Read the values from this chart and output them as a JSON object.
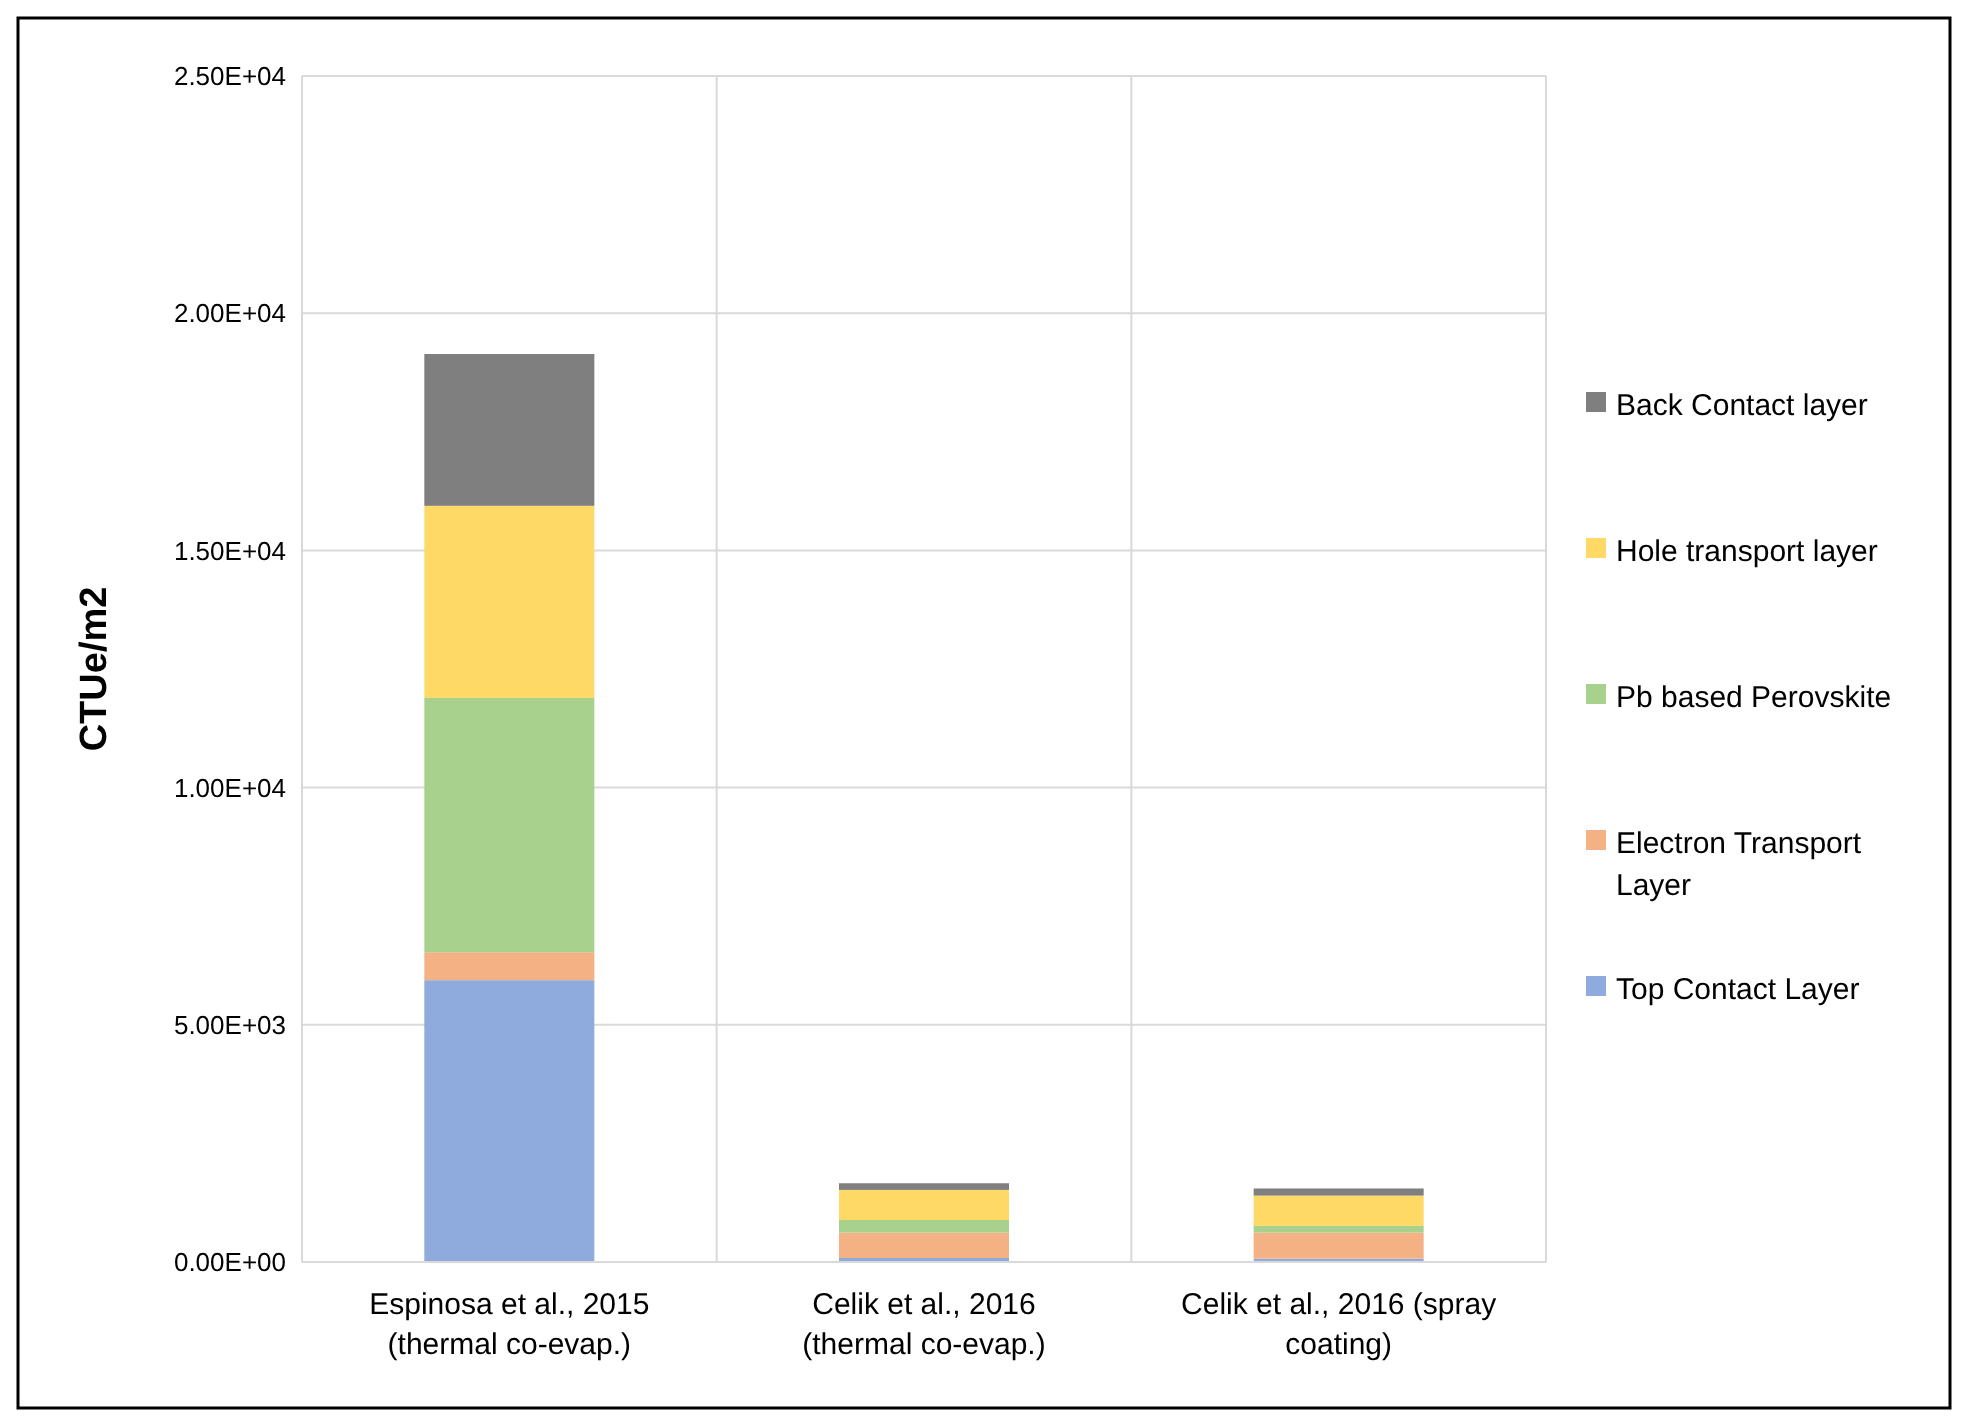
{
  "chart_data": {
    "type": "bar",
    "stacked": true,
    "ylabel": "CTUe/m2",
    "categories": [
      "Espinosa et al., 2015 (thermal co-evap.)",
      "Celik et al., 2016 (thermal co-evap.)",
      "Celik et al., 2016 (spray coating)"
    ],
    "series": [
      {
        "name": "Top Contact Layer",
        "color": "#8faadc",
        "values": [
          5940,
          85,
          70
        ]
      },
      {
        "name": "Electron Transport Layer",
        "color": "#f4b183",
        "values": [
          590,
          535,
          550
        ]
      },
      {
        "name": "Pb based Perovskite",
        "color": "#a9d18e",
        "values": [
          5360,
          265,
          140
        ]
      },
      {
        "name": "Hole transport layer",
        "color": "#ffd966",
        "values": [
          4050,
          635,
          640
        ]
      },
      {
        "name": "Back Contact layer",
        "color": "#7f7f7f",
        "values": [
          3200,
          140,
          150
        ]
      }
    ],
    "ylim": [
      0,
      25000
    ],
    "yticks": [
      {
        "value": 0,
        "label": "0.00E+00"
      },
      {
        "value": 5000,
        "label": "5.00E+03"
      },
      {
        "value": 10000,
        "label": "1.00E+04"
      },
      {
        "value": 15000,
        "label": "1.50E+04"
      },
      {
        "value": 20000,
        "label": "2.00E+04"
      },
      {
        "value": 25000,
        "label": "2.50E+04"
      }
    ],
    "grid": true,
    "legend": "right"
  }
}
